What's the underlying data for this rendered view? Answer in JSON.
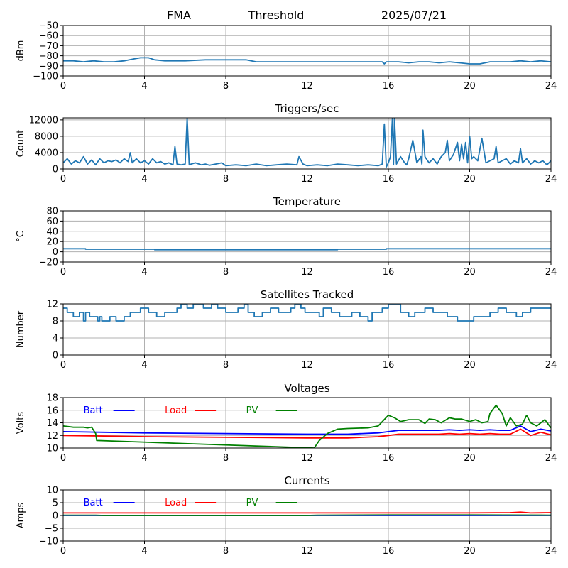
{
  "header": {
    "station": "FMA",
    "mode": "Threshold",
    "date": "2025/07/21"
  },
  "colors": {
    "series_default": "#1f77b4",
    "batt": "#0000ff",
    "load": "#ff0000",
    "pv": "#008000",
    "grid": "#b0b0b0"
  },
  "chart_data": [
    {
      "type": "line",
      "title": "",
      "xlabel": "",
      "ylabel": "dBm",
      "xlim": [
        0,
        24
      ],
      "ylim": [
        -100,
        -50
      ],
      "xticks": [
        0,
        4,
        8,
        12,
        16,
        20,
        24
      ],
      "yticks": [
        -100,
        -90,
        -80,
        -70,
        -60,
        -50
      ],
      "ytick_labels": [
        "−100",
        "−90",
        "−80",
        "−70",
        "−60",
        "−50"
      ],
      "grid": true,
      "series": [
        {
          "color_key": "series_default",
          "x": [
            0,
            0.5,
            1.0,
            1.5,
            2.0,
            2.5,
            3.0,
            3.5,
            3.8,
            4.2,
            4.5,
            5.0,
            6.0,
            7.0,
            8.0,
            8.5,
            9.0,
            9.5,
            10.0,
            11.0,
            12.0,
            13.0,
            14.0,
            15.0,
            15.7,
            15.8,
            15.9,
            16.0,
            16.5,
            17.0,
            17.5,
            18.0,
            18.5,
            19.0,
            19.5,
            20.0,
            20.5,
            21.0,
            21.5,
            22.0,
            22.5,
            23.0,
            23.5,
            24.0
          ],
          "values": [
            -85,
            -85,
            -86,
            -85,
            -86,
            -86,
            -85,
            -83,
            -82,
            -82,
            -84,
            -85,
            -85,
            -84,
            -84,
            -84,
            -84,
            -86,
            -86,
            -86,
            -86,
            -86,
            -86,
            -86,
            -86,
            -88,
            -86,
            -86,
            -86,
            -87,
            -86,
            -86,
            -87,
            -86,
            -87,
            -88,
            -88,
            -86,
            -86,
            -86,
            -85,
            -86,
            -85,
            -86
          ]
        }
      ]
    },
    {
      "type": "line",
      "title": "Triggers/sec",
      "xlabel": "",
      "ylabel": "Count",
      "xlim": [
        0,
        24
      ],
      "ylim": [
        0,
        12500
      ],
      "xticks": [
        0,
        4,
        8,
        12,
        16,
        20,
        24
      ],
      "yticks": [
        0,
        4000,
        8000,
        12000
      ],
      "ytick_labels": [
        "0",
        "4000",
        "8000",
        "12000"
      ],
      "grid": true,
      "series": [
        {
          "color_key": "series_default",
          "x": [
            0,
            0.2,
            0.4,
            0.6,
            0.8,
            1.0,
            1.2,
            1.4,
            1.6,
            1.8,
            2.0,
            2.2,
            2.4,
            2.6,
            2.8,
            3.0,
            3.2,
            3.3,
            3.4,
            3.6,
            3.8,
            4.0,
            4.2,
            4.4,
            4.6,
            4.8,
            5.0,
            5.2,
            5.4,
            5.5,
            5.6,
            5.8,
            6.0,
            6.1,
            6.2,
            6.3,
            6.5,
            6.8,
            7.0,
            7.2,
            7.5,
            7.8,
            8.0,
            8.5,
            9.0,
            9.5,
            10.0,
            10.5,
            11.0,
            11.5,
            11.6,
            11.8,
            12.0,
            12.5,
            13.0,
            13.5,
            14.0,
            14.5,
            15.0,
            15.5,
            15.7,
            15.8,
            15.9,
            16.0,
            16.1,
            16.2,
            16.25,
            16.3,
            16.4,
            16.6,
            16.8,
            16.9,
            17.0,
            17.2,
            17.4,
            17.6,
            17.65,
            17.7,
            17.8,
            18.0,
            18.2,
            18.4,
            18.6,
            18.8,
            18.9,
            19.0,
            19.2,
            19.4,
            19.5,
            19.6,
            19.7,
            19.8,
            19.9,
            20.0,
            20.1,
            20.2,
            20.4,
            20.6,
            20.8,
            21.0,
            21.2,
            21.3,
            21.4,
            21.6,
            21.8,
            22.0,
            22.2,
            22.4,
            22.5,
            22.6,
            22.8,
            23.0,
            23.2,
            23.4,
            23.6,
            23.8,
            24.0
          ],
          "values": [
            1500,
            2500,
            1200,
            2000,
            1500,
            3000,
            1200,
            2200,
            1000,
            2500,
            1500,
            2000,
            1800,
            2200,
            1500,
            2500,
            1800,
            4000,
            1500,
            2500,
            1500,
            2000,
            1200,
            2500,
            1500,
            1800,
            1200,
            1500,
            1000,
            5500,
            1200,
            1000,
            1200,
            12500,
            1000,
            1200,
            1500,
            1000,
            1200,
            900,
            1200,
            1500,
            800,
            1000,
            800,
            1200,
            800,
            1000,
            1200,
            1000,
            3000,
            1200,
            800,
            1000,
            800,
            1200,
            1000,
            800,
            1000,
            800,
            1200,
            11000,
            500,
            1500,
            3000,
            12500,
            1000,
            12500,
            1200,
            3000,
            1500,
            1000,
            2500,
            7000,
            1500,
            3000,
            1200,
            9500,
            3000,
            1500,
            2500,
            1200,
            3000,
            4000,
            7000,
            2000,
            3500,
            6500,
            2000,
            6000,
            2500,
            6500,
            1500,
            8000,
            2500,
            3000,
            2000,
            7500,
            1500,
            2000,
            2500,
            5500,
            1500,
            2000,
            2500,
            1200,
            2000,
            1500,
            5000,
            1500,
            2500,
            1200,
            2000,
            1500,
            2000,
            1000,
            2000
          ]
        }
      ]
    },
    {
      "type": "line",
      "title": "Temperature",
      "xlabel": "",
      "ylabel": "°C",
      "xlim": [
        0,
        24
      ],
      "ylim": [
        -20,
        80
      ],
      "xticks": [
        0,
        4,
        8,
        12,
        16,
        20,
        24
      ],
      "yticks": [
        -20,
        0,
        20,
        40,
        60,
        80
      ],
      "ytick_labels": [
        "−20",
        "0",
        "20",
        "40",
        "60",
        "80"
      ],
      "grid": true,
      "series": [
        {
          "color_key": "series_default",
          "x": [
            0,
            1.1,
            1.1,
            4.5,
            4.5,
            13.5,
            13.5,
            15.9,
            15.9,
            24
          ],
          "values": [
            6,
            6,
            5,
            5,
            4,
            4,
            5,
            5,
            6,
            6
          ]
        }
      ]
    },
    {
      "type": "line",
      "title": "Satellites Tracked",
      "xlabel": "",
      "ylabel": "Number",
      "xlim": [
        0,
        24
      ],
      "ylim": [
        0,
        12
      ],
      "xticks": [
        0,
        4,
        8,
        12,
        16,
        20,
        24
      ],
      "yticks": [
        0,
        4,
        8,
        12
      ],
      "ytick_labels": [
        "0",
        "4",
        "8",
        "12"
      ],
      "grid": true,
      "series": [
        {
          "color_key": "series_default",
          "x": [
            0,
            0.2,
            0.2,
            0.5,
            0.5,
            0.8,
            0.8,
            1.0,
            1.0,
            1.1,
            1.1,
            1.3,
            1.3,
            1.7,
            1.7,
            1.8,
            1.8,
            1.9,
            1.9,
            2.3,
            2.3,
            2.6,
            2.6,
            3.0,
            3.0,
            3.3,
            3.3,
            3.8,
            3.8,
            4.2,
            4.2,
            4.6,
            4.6,
            5.0,
            5.0,
            5.6,
            5.6,
            5.8,
            5.8,
            6.1,
            6.1,
            6.4,
            6.4,
            6.9,
            6.9,
            7.3,
            7.3,
            7.6,
            7.6,
            8.0,
            8.0,
            8.6,
            8.6,
            8.9,
            8.9,
            9.1,
            9.1,
            9.4,
            9.4,
            9.8,
            9.8,
            10.2,
            10.2,
            10.6,
            10.6,
            11.2,
            11.2,
            11.4,
            11.4,
            11.7,
            11.7,
            11.9,
            11.9,
            12.6,
            12.6,
            12.8,
            12.8,
            13.2,
            13.2,
            13.6,
            13.6,
            14.2,
            14.2,
            14.6,
            14.6,
            15.0,
            15.0,
            15.2,
            15.2,
            15.7,
            15.7,
            16.0,
            16.0,
            16.6,
            16.6,
            17.0,
            17.0,
            17.3,
            17.3,
            17.8,
            17.8,
            18.2,
            18.2,
            18.9,
            18.9,
            19.4,
            19.4,
            20.2,
            20.2,
            21.0,
            21.0,
            21.4,
            21.4,
            21.8,
            21.8,
            22.3,
            22.3,
            22.6,
            22.6,
            23.0,
            23.0,
            24.0
          ],
          "values": [
            11,
            11,
            10,
            10,
            9,
            9,
            10,
            10,
            8,
            8,
            10,
            10,
            9,
            9,
            8,
            8,
            9,
            9,
            8,
            8,
            9,
            9,
            8,
            8,
            9,
            9,
            10,
            10,
            11,
            11,
            10,
            10,
            9,
            9,
            10,
            10,
            11,
            11,
            12,
            12,
            11,
            11,
            12,
            12,
            11,
            11,
            12,
            12,
            11,
            11,
            10,
            10,
            11,
            11,
            12,
            12,
            10,
            10,
            9,
            9,
            10,
            10,
            11,
            11,
            10,
            10,
            11,
            11,
            12,
            12,
            11,
            11,
            10,
            10,
            9,
            9,
            11,
            11,
            10,
            10,
            9,
            9,
            10,
            10,
            9,
            9,
            8,
            8,
            10,
            10,
            11,
            11,
            12,
            12,
            10,
            10,
            9,
            9,
            10,
            10,
            11,
            11,
            10,
            10,
            9,
            9,
            8,
            8,
            9,
            9,
            10,
            10,
            11,
            11,
            10,
            10,
            9,
            9,
            10,
            10,
            11,
            11
          ]
        }
      ]
    },
    {
      "type": "line",
      "title": "Voltages",
      "xlabel": "",
      "ylabel": "Volts",
      "xlim": [
        0,
        24
      ],
      "ylim": [
        10,
        18
      ],
      "xticks": [
        0,
        4,
        8,
        12,
        16,
        20,
        24
      ],
      "yticks": [
        10,
        12,
        14,
        16,
        18
      ],
      "ytick_labels": [
        "10",
        "12",
        "14",
        "16",
        "18"
      ],
      "grid": true,
      "legend": "top-left",
      "series": [
        {
          "name": "Batt",
          "color_key": "batt",
          "x": [
            0,
            2,
            4,
            8,
            12,
            14,
            15.5,
            16,
            16.5,
            17,
            17.5,
            18,
            18.5,
            19,
            19.5,
            20,
            20.5,
            21,
            21.5,
            22,
            22.5,
            23,
            23.5,
            24
          ],
          "values": [
            12.6,
            12.5,
            12.4,
            12.3,
            12.2,
            12.2,
            12.4,
            12.6,
            12.8,
            12.8,
            12.8,
            12.8,
            12.8,
            12.9,
            12.8,
            12.9,
            12.8,
            12.9,
            12.8,
            12.8,
            13.5,
            12.6,
            13.0,
            12.7
          ]
        },
        {
          "name": "Load",
          "color_key": "load",
          "x": [
            0,
            2,
            4,
            8,
            12,
            14,
            15.5,
            16,
            16.5,
            17,
            17.5,
            18,
            18.5,
            19,
            19.5,
            20,
            20.5,
            21,
            21.5,
            22,
            22.5,
            23,
            23.5,
            24
          ],
          "values": [
            12.0,
            11.9,
            11.8,
            11.7,
            11.6,
            11.6,
            11.8,
            12.0,
            12.2,
            12.2,
            12.2,
            12.2,
            12.2,
            12.3,
            12.2,
            12.3,
            12.2,
            12.3,
            12.2,
            12.2,
            13.0,
            12.0,
            12.5,
            12.1
          ]
        },
        {
          "name": "PV",
          "color_key": "pv",
          "x": [
            0,
            0.5,
            1.0,
            1.2,
            1.4,
            1.6,
            1.65,
            12.35,
            12.6,
            13.0,
            13.5,
            14.0,
            15.0,
            15.5,
            16.0,
            16.3,
            16.6,
            17.0,
            17.5,
            17.8,
            18.0,
            18.3,
            18.6,
            19.0,
            19.3,
            19.6,
            20.0,
            20.3,
            20.6,
            20.9,
            21.0,
            21.3,
            21.6,
            21.8,
            22.0,
            22.3,
            22.6,
            22.8,
            23.0,
            23.3,
            23.7,
            24.0
          ],
          "values": [
            13.5,
            13.3,
            13.3,
            13.2,
            13.3,
            12.3,
            11.2,
            10.0,
            11.2,
            12.3,
            13.0,
            13.1,
            13.2,
            13.5,
            15.2,
            14.8,
            14.2,
            14.5,
            14.5,
            13.9,
            14.6,
            14.5,
            14.0,
            14.8,
            14.6,
            14.6,
            14.2,
            14.5,
            14.0,
            14.2,
            15.5,
            16.8,
            15.5,
            13.5,
            14.8,
            13.5,
            13.8,
            15.2,
            14.0,
            13.5,
            14.5,
            13.2
          ]
        }
      ]
    },
    {
      "type": "line",
      "title": "Currents",
      "xlabel": "",
      "ylabel": "Amps",
      "xlim": [
        0,
        24
      ],
      "ylim": [
        -10,
        10
      ],
      "xticks": [
        0,
        4,
        8,
        12,
        16,
        20,
        24
      ],
      "yticks": [
        -10,
        -5,
        0,
        5,
        10
      ],
      "ytick_labels": [
        "−10",
        "−5",
        "0",
        "5",
        "10"
      ],
      "grid": true,
      "legend": "top-left",
      "series": [
        {
          "name": "Batt",
          "color_key": "batt",
          "x": [
            0,
            24
          ],
          "values": [
            0.0,
            0.0
          ]
        },
        {
          "name": "Load",
          "color_key": "load",
          "x": [
            0,
            4,
            8,
            12,
            16,
            18,
            20,
            22,
            22.5,
            23,
            24
          ],
          "values": [
            1.0,
            1.0,
            1.0,
            1.0,
            1.0,
            1.0,
            1.0,
            1.1,
            1.3,
            1.0,
            1.1
          ]
        },
        {
          "name": "PV",
          "color_key": "pv",
          "x": [
            0,
            1.6,
            2,
            12,
            12.5,
            16,
            20,
            24
          ],
          "values": [
            0.1,
            0.1,
            0.0,
            0.0,
            0.1,
            0.2,
            0.2,
            0.1
          ]
        }
      ]
    }
  ]
}
